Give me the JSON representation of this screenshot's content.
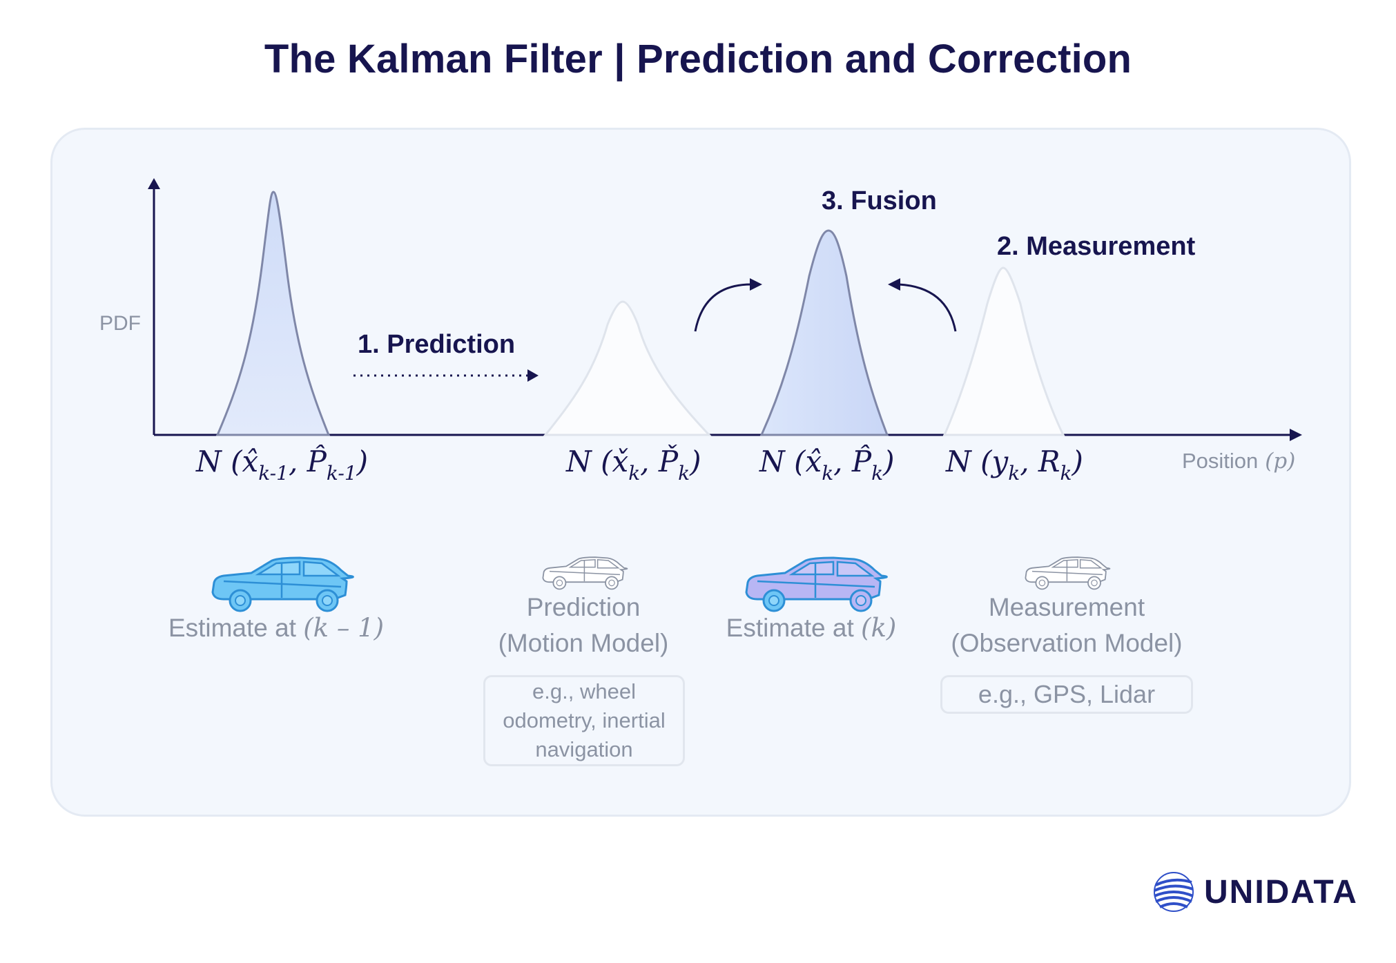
{
  "title": "The Kalman Filter | Prediction and Correction",
  "axes": {
    "y_label": "PDF",
    "x_label": "Position",
    "x_symbol": "(p)"
  },
  "steps": {
    "prediction": "1. Prediction",
    "measurement": "2. Measurement",
    "fusion": "3. Fusion"
  },
  "distributions": [
    {
      "id": "prev",
      "text": "N (x̂",
      "sub1": "k-1",
      "mid": ", P̂",
      "sub2": "k-1",
      "end": ")"
    },
    {
      "id": "pred",
      "text": "N (x̌",
      "sub1": "k",
      "mid": ", P̌",
      "sub2": "k",
      "end": ")"
    },
    {
      "id": "fused",
      "text": "N (x̂",
      "sub1": "k",
      "mid": ", P̂",
      "sub2": "k",
      "end": ")"
    },
    {
      "id": "meas",
      "text": "N (y",
      "sub1": "k",
      "mid": ", R",
      "sub2": "k",
      "end": ")"
    }
  ],
  "captions": {
    "estimate_prev": {
      "text": "Estimate at",
      "var": "(k – 1)"
    },
    "prediction_line1": "Prediction",
    "prediction_line2": "(Motion Model)",
    "estimate_k": {
      "text": "Estimate at",
      "var": "(k)"
    },
    "measurement_line1": "Measurement",
    "measurement_line2": "(Observation Model)"
  },
  "examples": {
    "prediction": [
      "e.g., wheel",
      "odometry, inertial",
      "navigation"
    ],
    "measurement": "e.g., GPS, Lidar"
  },
  "brand": {
    "name": "UNIDATA"
  },
  "colors": {
    "navy": "#17154f",
    "fill_blue": "#d6e2fa",
    "curve_stroke": "#7f87a8",
    "car_blue": "#6ec6f5",
    "car_purple": "#b8b6f4",
    "gray_text": "#8b93a3"
  },
  "icons": [
    "car-icon",
    "globe-logo-icon",
    "arrow-icon"
  ]
}
